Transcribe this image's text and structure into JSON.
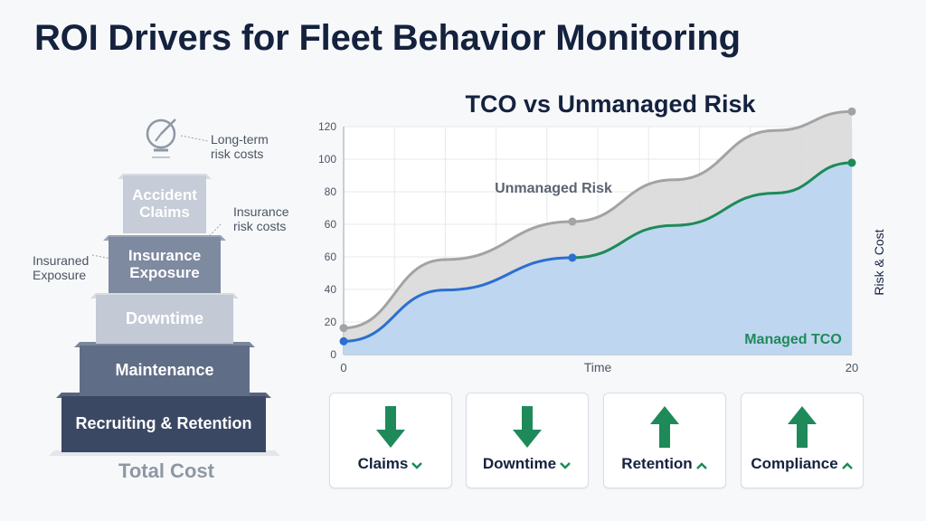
{
  "page": {
    "title": "ROI Drivers for Fleet Behavior Monitoring"
  },
  "pyramid": {
    "tiers": [
      "Accident Claims",
      "Insurance Exposure",
      "Downtime",
      "Maintenance",
      "Recruiting & Retention"
    ],
    "base_label": "Total Cost",
    "callouts": {
      "long_term": "Long-term risk costs",
      "insurance": "Insurance risk costs",
      "insured": "Insuraned Exposure"
    },
    "colors": [
      "#b9c2cf",
      "#7e8aa0",
      "#c6cdd8",
      "#5c6a84",
      "#3a4863"
    ]
  },
  "chart_data": {
    "type": "area",
    "title": "TCO vs Unmanaged Risk",
    "xlabel": "Time",
    "ylabel": "Risk & Cost",
    "x_tick_labels": [
      "0",
      "20"
    ],
    "y_tick_labels": [
      "0",
      "20",
      "40",
      "60",
      "60",
      "80",
      "100",
      "120"
    ],
    "xlim": [
      0,
      20
    ],
    "ylim": [
      0,
      120
    ],
    "grid": true,
    "series": [
      {
        "name": "Unmanaged Risk",
        "color": "#a3a3a3",
        "x": [
          0,
          4,
          9,
          13,
          17,
          20
        ],
        "y": [
          14,
          50,
          70,
          92,
          118,
          128
        ]
      },
      {
        "name": "Managed TCO",
        "color": "#1e8a5a",
        "x": [
          0,
          4,
          9,
          13,
          17,
          20
        ],
        "y": [
          7,
          34,
          51,
          68,
          85,
          101
        ]
      }
    ],
    "markers": [
      {
        "series": "Unmanaged Risk",
        "x": [
          0,
          9,
          20
        ],
        "y": [
          14,
          70,
          128
        ]
      },
      {
        "series": "Managed TCO",
        "x": [
          0,
          9,
          20
        ],
        "y": [
          7,
          51,
          101
        ]
      }
    ]
  },
  "kpis": [
    {
      "label": "Claims",
      "direction": "down"
    },
    {
      "label": "Downtime",
      "direction": "down"
    },
    {
      "label": "Retention",
      "direction": "up"
    },
    {
      "label": "Compliance",
      "direction": "up"
    }
  ],
  "colors": {
    "accent_green": "#1e8a5a",
    "navy": "#14223e",
    "managed_line": "#2b6fd0",
    "area_blue": "#bcd5f0",
    "area_gray": "#d9d9d9"
  }
}
